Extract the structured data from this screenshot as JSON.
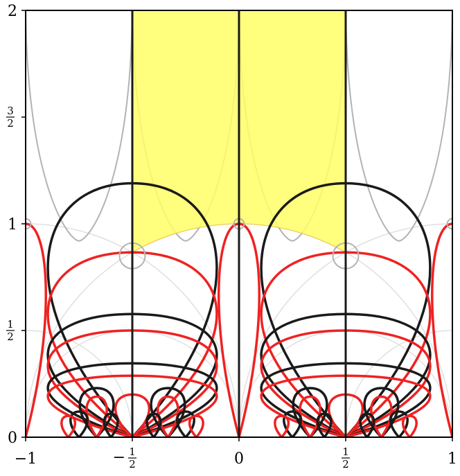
{
  "chart_data": {
    "type": "line",
    "title": "",
    "xlabel": "",
    "ylabel": "",
    "xlim": [
      -1,
      1
    ],
    "ylim": [
      0,
      2
    ],
    "grid": false,
    "x_ticks": [
      {
        "value": -1,
        "label": "−1"
      },
      {
        "value": -0.5,
        "label": "−",
        "num": "1",
        "den": "2"
      },
      {
        "value": 0,
        "label": "0"
      },
      {
        "value": 0.5,
        "label": "",
        "num": "1",
        "den": "2"
      },
      {
        "value": 1,
        "label": "1"
      }
    ],
    "y_ticks": [
      {
        "value": 0,
        "label": "0"
      },
      {
        "value": 0.5,
        "label": "",
        "num": "1",
        "den": "2"
      },
      {
        "value": 1,
        "label": "1"
      },
      {
        "value": 1.5,
        "label": "",
        "num": "3",
        "den": "2"
      },
      {
        "value": 2,
        "label": "2"
      }
    ],
    "fundamental_domain": {
      "x_range": [
        -0.5,
        0.5
      ],
      "y_top": 2,
      "lower_boundary": "unit circle |z| = 1",
      "color": "#ffff66"
    },
    "colors": {
      "red_curves": "#ee2222",
      "black_curves": "#1a1a1a",
      "gray_curves": "#b3b3b3",
      "light_gray_curves": "#e0e0e0",
      "highlight": "#ffff66"
    },
    "series": [
      {
        "color": "red",
        "apex": [
          0,
          1
        ],
        "base_width": 0.12
      },
      {
        "color": "red",
        "apex": [
          1,
          1
        ],
        "base_width": 0.12
      },
      {
        "color": "red",
        "apex": [
          -1,
          1
        ],
        "base_width": 0.12
      },
      {
        "color": "black",
        "apex": [
          0.5,
          1.19
        ],
        "base_width": 0.5
      },
      {
        "color": "black",
        "apex": [
          -0.5,
          1.19
        ],
        "base_width": 0.5
      },
      {
        "color": "red",
        "apex": [
          0.5,
          0.866
        ],
        "base_width": 0.5
      },
      {
        "color": "red",
        "apex": [
          -0.5,
          0.866
        ],
        "base_width": 0.5
      },
      {
        "color": "black",
        "apex": [
          0.5,
          0.577
        ],
        "base_width": 0.5
      },
      {
        "color": "black",
        "apex": [
          -0.5,
          0.577
        ],
        "base_width": 0.5
      },
      {
        "color": "red",
        "apex": [
          0.5,
          0.5
        ],
        "base_width": 0.5
      },
      {
        "color": "red",
        "apex": [
          -0.5,
          0.5
        ],
        "base_width": 0.5
      },
      {
        "color": "black",
        "apex": [
          0.5,
          0.346
        ],
        "base_width": 0.5
      },
      {
        "color": "black",
        "apex": [
          -0.5,
          0.346
        ],
        "base_width": 0.5
      },
      {
        "color": "red",
        "apex": [
          0.5,
          0.288
        ],
        "base_width": 0.5
      },
      {
        "color": "red",
        "apex": [
          -0.5,
          0.288
        ],
        "base_width": 0.5
      },
      {
        "color": "red",
        "apex": [
          0.5,
          0.2
        ],
        "base_width": 0.1
      },
      {
        "color": "red",
        "apex": [
          -0.5,
          0.2
        ],
        "base_width": 0.1
      },
      {
        "color": "black",
        "apex": [
          0.333,
          0.23
        ],
        "base_width": 0.1
      },
      {
        "color": "black",
        "apex": [
          0.667,
          0.23
        ],
        "base_width": 0.1
      },
      {
        "color": "black",
        "apex": [
          -0.333,
          0.23
        ],
        "base_width": 0.1
      },
      {
        "color": "black",
        "apex": [
          -0.667,
          0.23
        ],
        "base_width": 0.1
      },
      {
        "color": "red",
        "apex": [
          0.333,
          0.19
        ],
        "base_width": 0.06
      },
      {
        "color": "red",
        "apex": [
          0.667,
          0.19
        ],
        "base_width": 0.06
      },
      {
        "color": "red",
        "apex": [
          -0.333,
          0.19
        ],
        "base_width": 0.06
      },
      {
        "color": "red",
        "apex": [
          -0.667,
          0.19
        ],
        "base_width": 0.06
      },
      {
        "color": "black",
        "apex": [
          0.25,
          0.12
        ],
        "base_width": 0.05
      },
      {
        "color": "black",
        "apex": [
          0.75,
          0.12
        ],
        "base_width": 0.05
      },
      {
        "color": "black",
        "apex": [
          -0.25,
          0.12
        ],
        "base_width": 0.05
      },
      {
        "color": "black",
        "apex": [
          -0.75,
          0.12
        ],
        "base_width": 0.05
      },
      {
        "color": "red",
        "apex": [
          0.2,
          0.1
        ],
        "base_width": 0.04
      },
      {
        "color": "red",
        "apex": [
          0.8,
          0.1
        ],
        "base_width": 0.04
      },
      {
        "color": "red",
        "apex": [
          -0.2,
          0.1
        ],
        "base_width": 0.04
      },
      {
        "color": "red",
        "apex": [
          -0.8,
          0.1
        ],
        "base_width": 0.04
      },
      {
        "color": "black",
        "apex": [
          0.4,
          0.11
        ],
        "base_width": 0.04
      },
      {
        "color": "black",
        "apex": [
          0.6,
          0.11
        ],
        "base_width": 0.04
      },
      {
        "color": "black",
        "apex": [
          -0.4,
          0.11
        ],
        "base_width": 0.04
      },
      {
        "color": "black",
        "apex": [
          -0.6,
          0.11
        ],
        "base_width": 0.04
      },
      {
        "color": "gray",
        "apex": [
          0,
          1.0
        ],
        "base_width": 0.04
      },
      {
        "color": "gray",
        "apex": [
          0.5,
          0.85
        ],
        "base_width": 0.1
      },
      {
        "color": "gray",
        "apex": [
          -0.5,
          0.85
        ],
        "base_width": 0.1
      },
      {
        "color": "gray",
        "apex": [
          1,
          1.0
        ],
        "base_width": 0.04
      },
      {
        "color": "gray",
        "apex": [
          -1,
          1.0
        ],
        "base_width": 0.04
      }
    ],
    "vertical_lines": [
      {
        "x": -0.5,
        "color": "black"
      },
      {
        "x": 0,
        "color": "black"
      },
      {
        "x": 0.5,
        "color": "black"
      }
    ]
  }
}
